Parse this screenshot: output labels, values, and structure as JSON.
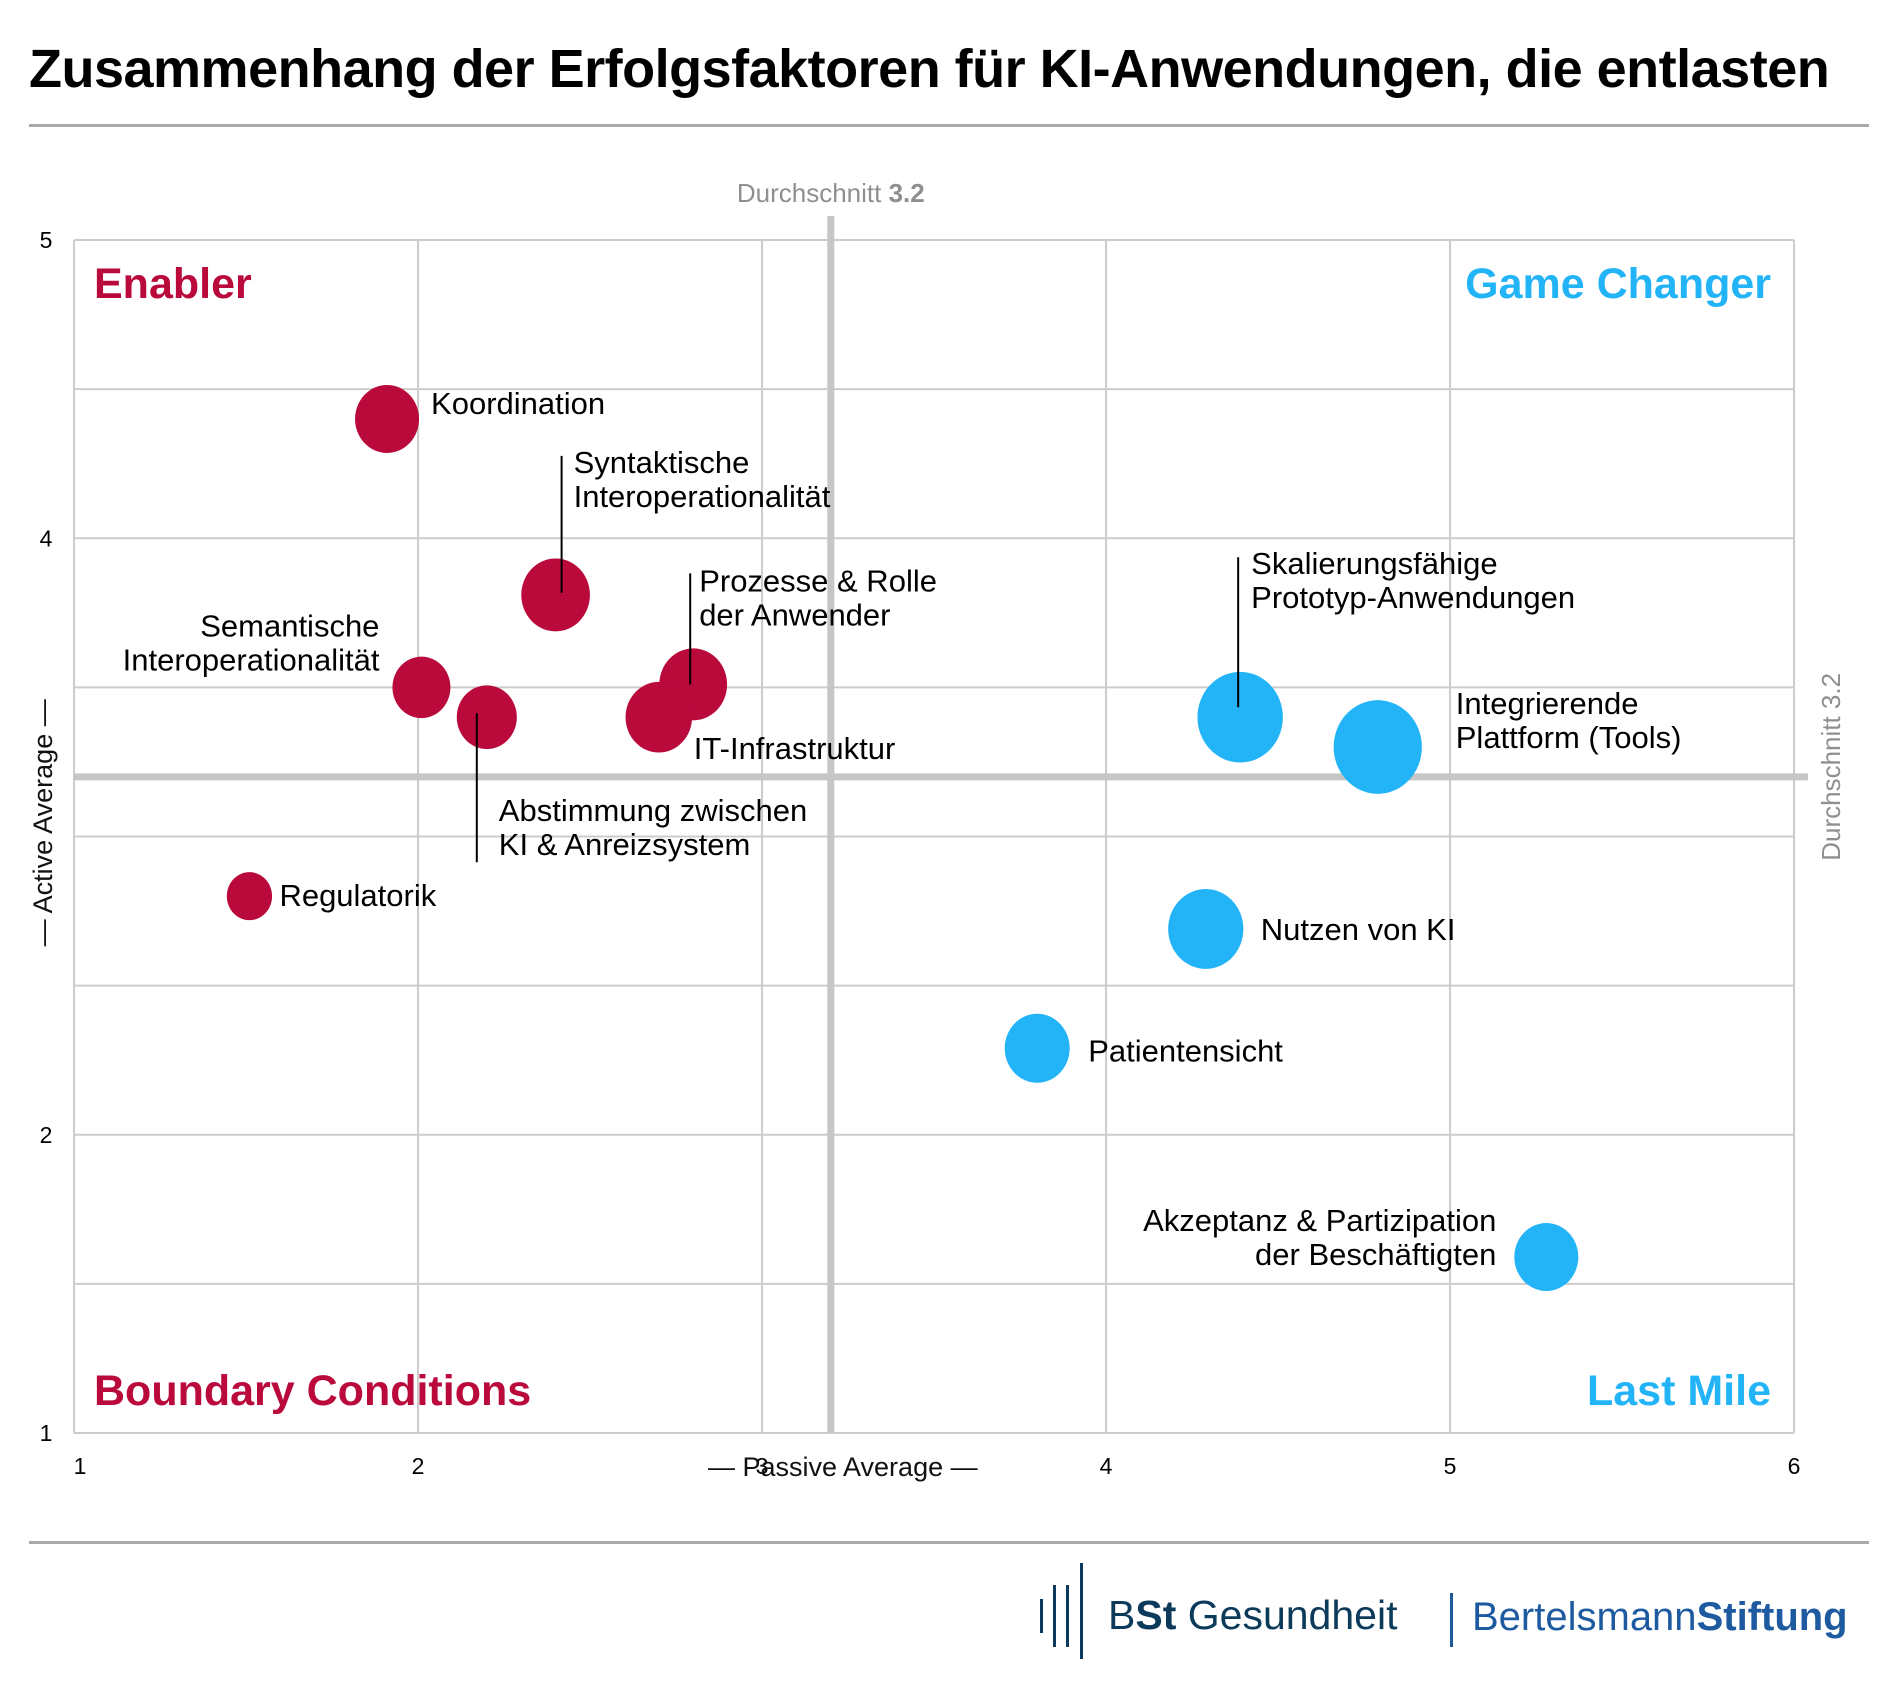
{
  "title": "Zusammenhang der Erfolgsfaktoren für KI-Anwendungen, die entlasten",
  "colors": {
    "enabler_red": "#BA0A3C",
    "gamechanger_blue": "#23B4F8",
    "grid": "#CCCCCC",
    "average_line": "#C6C6C6",
    "footer_navy": "#0C3A5A",
    "footer_blue": "#1E5AA0"
  },
  "chart_data": {
    "type": "scatter",
    "subtype": "bubble",
    "title": "Zusammenhang der Erfolgsfaktoren für KI-Anwendungen, die entlasten",
    "xlabel": "— Passive Average —",
    "ylabel": "— Active Average —",
    "xlim": [
      1,
      6
    ],
    "ylim": [
      1,
      5
    ],
    "x_ticks": [
      "1",
      "2",
      "3",
      "4",
      "5",
      "6"
    ],
    "y_ticks": [
      "5",
      "4",
      "2",
      "1"
    ],
    "y_tick_values": [
      5,
      4,
      2,
      1
    ],
    "x_tick_values": [
      1,
      2,
      3,
      4,
      5,
      6
    ],
    "grid": true,
    "x_grid_step": 1,
    "y_grid_step": 0.5,
    "reference_lines": {
      "vertical": {
        "value": 3.2,
        "label": "Durchschnitt",
        "label_value": "3.2"
      },
      "horizontal": {
        "value": 3.2,
        "label": "Durchschnitt 3.2"
      }
    },
    "quadrants": [
      {
        "name": "Enabler",
        "position": "top-left",
        "color": "#BA0A3C"
      },
      {
        "name": "Game Changer",
        "position": "top-right",
        "color": "#23B4F8"
      },
      {
        "name": "Boundary Conditions",
        "position": "bottom-left",
        "color": "#BA0A3C"
      },
      {
        "name": "Last Mile",
        "position": "bottom-right",
        "color": "#23B4F8"
      }
    ],
    "series": [
      {
        "name": "Enabler / Boundary",
        "color": "#BA0A3C",
        "points": [
          {
            "label": [
              "Koordination"
            ],
            "x": 1.91,
            "y": 4.4,
            "size": 1.0
          },
          {
            "label": [
              "Syntaktische",
              "Interoperationalität"
            ],
            "x": 2.4,
            "y": 3.81,
            "size": 1.15
          },
          {
            "label": [
              "Semantische",
              "Interoperationalität"
            ],
            "x": 2.01,
            "y": 3.5,
            "size": 0.82
          },
          {
            "label": [
              "Abstimmung zwischen",
              "KI & Anreizsystem"
            ],
            "x": 2.2,
            "y": 3.4,
            "size": 0.88
          },
          {
            "label": [
              "Prozesse & Rolle",
              "der Anwender"
            ],
            "x": 2.8,
            "y": 3.51,
            "size": 1.12
          },
          {
            "label": [
              "IT-Infrastruktur"
            ],
            "x": 2.7,
            "y": 3.4,
            "size": 1.08
          },
          {
            "label": [
              "Regulatorik"
            ],
            "x": 1.51,
            "y": 2.8,
            "size": 0.5
          }
        ]
      },
      {
        "name": "Game Changer / Last Mile",
        "color": "#23B4F8",
        "points": [
          {
            "label": [
              "Skalierungsfähige",
              "Prototyp-Anwendungen"
            ],
            "x": 4.39,
            "y": 3.4,
            "size": 1.78
          },
          {
            "label": [
              "Integrierende",
              "Plattform (Tools)"
            ],
            "x": 4.79,
            "y": 3.3,
            "size": 1.9
          },
          {
            "label": [
              "Nutzen von KI"
            ],
            "x": 4.29,
            "y": 2.69,
            "size": 1.38
          },
          {
            "label": [
              "Patientensicht"
            ],
            "x": 3.8,
            "y": 2.29,
            "size": 1.03
          },
          {
            "label": [
              "Akzeptanz & Partizipation",
              "der Beschäftigten"
            ],
            "x": 5.28,
            "y": 1.59,
            "size": 1.0
          }
        ]
      }
    ]
  },
  "footer": {
    "logo1_prefix": "B",
    "logo1_bold": "St",
    "logo1_suffix": " Gesundheit",
    "logo2_regular": "Bertelsmann",
    "logo2_bold": "Stiftung"
  }
}
